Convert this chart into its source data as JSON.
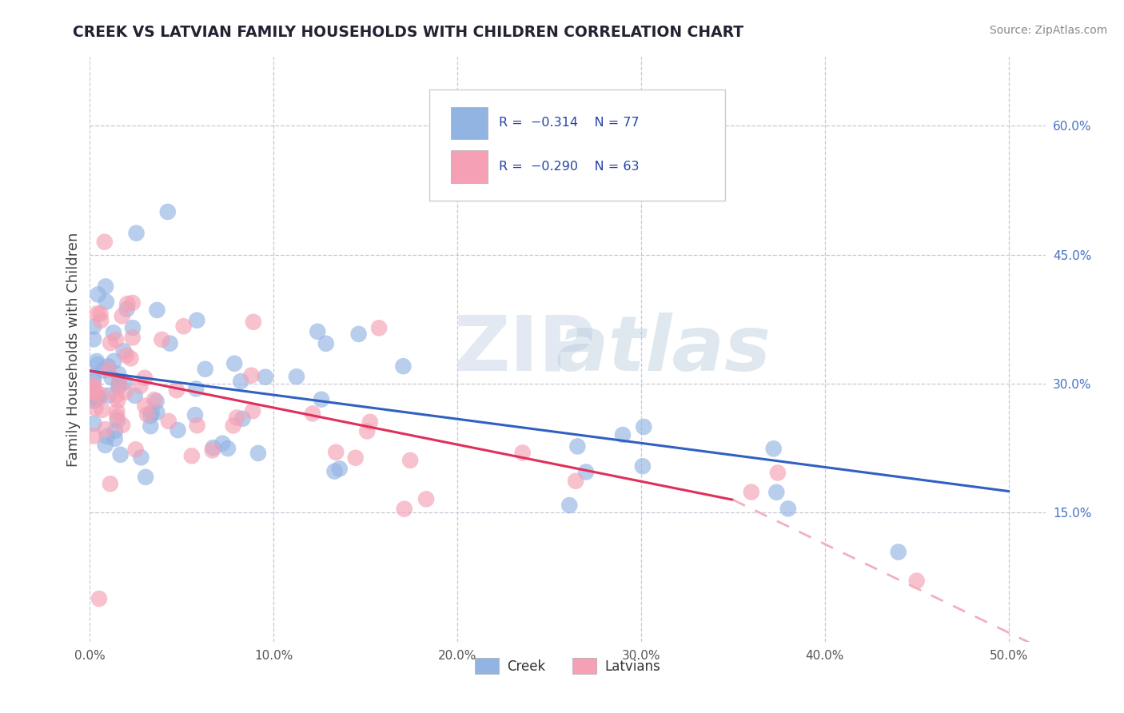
{
  "title": "CREEK VS LATVIAN FAMILY HOUSEHOLDS WITH CHILDREN CORRELATION CHART",
  "source_text": "Source: ZipAtlas.com",
  "ylabel": "Family Households with Children",
  "y_ticks_right": [
    0.15,
    0.3,
    0.45,
    0.6
  ],
  "y_tick_labels_right": [
    "15.0%",
    "30.0%",
    "45.0%",
    "60.0%"
  ],
  "x_tick_vals": [
    0.0,
    0.1,
    0.2,
    0.3,
    0.4,
    0.5
  ],
  "x_tick_labels": [
    "0.0%",
    "10.0%",
    "20.0%",
    "30.0%",
    "40.0%",
    "50.0%"
  ],
  "xlim": [
    0.0,
    0.52
  ],
  "ylim": [
    0.0,
    0.68
  ],
  "creek_R": -0.314,
  "creek_N": 77,
  "latvian_R": -0.29,
  "latvian_N": 63,
  "creek_color": "#92b4e3",
  "latvian_color": "#f5a0b5",
  "creek_line_color": "#3060c0",
  "latvian_line_color": "#e0305a",
  "latvian_dash_color": "#f0b0c0",
  "background_color": "#ffffff",
  "grid_color": "#c8c8d8",
  "creek_trend": [
    0.0,
    0.5,
    0.315,
    0.175
  ],
  "latvian_trend_solid": [
    0.0,
    0.35,
    0.315,
    0.165
  ],
  "latvian_trend_dash": [
    0.35,
    0.52,
    0.165,
    -0.01
  ]
}
